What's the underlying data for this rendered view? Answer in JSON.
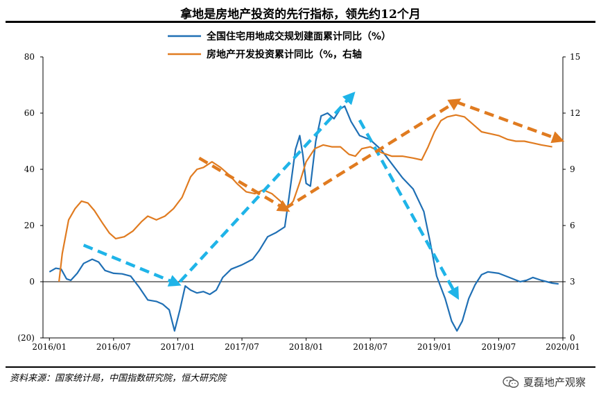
{
  "chart_data": {
    "type": "line",
    "title": "拿地是房地产投资的先行指标，领先约12个月",
    "series": [
      {
        "name": "全国住宅用地成交规划建面累计同比（%）",
        "axis": "left",
        "color": "#1f6fb4",
        "points": [
          [
            0.0,
            3.5
          ],
          [
            0.3,
            4.8
          ],
          [
            0.55,
            4.5
          ],
          [
            0.8,
            1.0
          ],
          [
            1.0,
            0.5
          ],
          [
            1.3,
            3.0
          ],
          [
            1.6,
            6.5
          ],
          [
            2.0,
            8.0
          ],
          [
            2.3,
            7.0
          ],
          [
            2.6,
            4.0
          ],
          [
            3.0,
            3.0
          ],
          [
            3.4,
            2.8
          ],
          [
            3.8,
            2.0
          ],
          [
            4.2,
            -2.0
          ],
          [
            4.6,
            -6.5
          ],
          [
            5.0,
            -7.0
          ],
          [
            5.3,
            -8.0
          ],
          [
            5.6,
            -10.0
          ],
          [
            5.85,
            -17.5
          ],
          [
            6.1,
            -10.0
          ],
          [
            6.35,
            -1.5
          ],
          [
            6.6,
            -3.0
          ],
          [
            6.9,
            -4.0
          ],
          [
            7.2,
            -3.5
          ],
          [
            7.5,
            -4.5
          ],
          [
            7.8,
            -3.0
          ],
          [
            8.1,
            1.5
          ],
          [
            8.5,
            4.5
          ],
          [
            9.0,
            6.0
          ],
          [
            9.5,
            8.0
          ],
          [
            9.8,
            11.0
          ],
          [
            10.2,
            16.0
          ],
          [
            10.6,
            17.5
          ],
          [
            11.0,
            19.5
          ],
          [
            11.2,
            30.0
          ],
          [
            11.5,
            47.0
          ],
          [
            11.7,
            52.0
          ],
          [
            11.85,
            45.0
          ],
          [
            12.0,
            35.0
          ],
          [
            12.2,
            34.0
          ],
          [
            12.45,
            50.0
          ],
          [
            12.7,
            59.0
          ],
          [
            13.0,
            60.0
          ],
          [
            13.3,
            58.0
          ],
          [
            13.6,
            61.5
          ],
          [
            13.8,
            62.5
          ],
          [
            14.1,
            57.0
          ],
          [
            14.5,
            52.0
          ],
          [
            15.0,
            50.5
          ],
          [
            15.5,
            47.0
          ],
          [
            16.0,
            42.0
          ],
          [
            16.5,
            37.0
          ],
          [
            17.0,
            33.0
          ],
          [
            17.5,
            25.0
          ],
          [
            17.8,
            14.0
          ],
          [
            18.1,
            2.0
          ],
          [
            18.5,
            -6.0
          ],
          [
            18.8,
            -14.0
          ],
          [
            19.05,
            -17.5
          ],
          [
            19.3,
            -14.0
          ],
          [
            19.6,
            -6.0
          ],
          [
            19.9,
            -1.0
          ],
          [
            20.2,
            2.5
          ],
          [
            20.5,
            3.5
          ],
          [
            21.0,
            3.0
          ],
          [
            21.5,
            1.5
          ],
          [
            22.0,
            0.0
          ],
          [
            22.3,
            0.5
          ],
          [
            22.6,
            1.5
          ],
          [
            23.0,
            0.5
          ],
          [
            23.5,
            -0.5
          ],
          [
            23.8,
            -0.8
          ]
        ]
      },
      {
        "name": "房地产开发投资累计同比（%，右轴",
        "axis": "right",
        "color": "#e07b20",
        "points": [
          [
            0.45,
            3.0
          ],
          [
            0.6,
            4.5
          ],
          [
            0.9,
            6.3
          ],
          [
            1.2,
            6.9
          ],
          [
            1.5,
            7.3
          ],
          [
            1.8,
            7.2
          ],
          [
            2.1,
            6.8
          ],
          [
            2.5,
            6.1
          ],
          [
            2.8,
            5.6
          ],
          [
            3.1,
            5.3
          ],
          [
            3.5,
            5.4
          ],
          [
            3.9,
            5.7
          ],
          [
            4.3,
            6.2
          ],
          [
            4.6,
            6.5
          ],
          [
            5.0,
            6.3
          ],
          [
            5.4,
            6.5
          ],
          [
            5.8,
            6.9
          ],
          [
            6.2,
            7.5
          ],
          [
            6.6,
            8.6
          ],
          [
            6.9,
            9.0
          ],
          [
            7.2,
            9.1
          ],
          [
            7.6,
            9.4
          ],
          [
            8.0,
            9.1
          ],
          [
            8.4,
            8.7
          ],
          [
            8.8,
            8.2
          ],
          [
            9.2,
            7.8
          ],
          [
            9.6,
            7.7
          ],
          [
            10.0,
            7.9
          ],
          [
            10.4,
            7.7
          ],
          [
            10.8,
            7.3
          ],
          [
            11.1,
            6.9
          ],
          [
            11.4,
            7.3
          ],
          [
            11.7,
            8.3
          ],
          [
            12.0,
            9.4
          ],
          [
            12.4,
            10.1
          ],
          [
            12.8,
            10.3
          ],
          [
            13.2,
            10.2
          ],
          [
            13.6,
            10.2
          ],
          [
            14.0,
            9.8
          ],
          [
            14.3,
            9.7
          ],
          [
            14.6,
            10.1
          ],
          [
            15.0,
            10.2
          ],
          [
            15.5,
            9.9
          ],
          [
            16.0,
            9.7
          ],
          [
            16.5,
            9.7
          ],
          [
            17.0,
            9.6
          ],
          [
            17.4,
            9.5
          ],
          [
            17.7,
            10.2
          ],
          [
            18.0,
            11.0
          ],
          [
            18.3,
            11.6
          ],
          [
            18.6,
            11.8
          ],
          [
            19.0,
            11.9
          ],
          [
            19.4,
            11.8
          ],
          [
            19.8,
            11.4
          ],
          [
            20.2,
            11.0
          ],
          [
            20.6,
            10.9
          ],
          [
            21.0,
            10.8
          ],
          [
            21.4,
            10.6
          ],
          [
            21.8,
            10.5
          ],
          [
            22.2,
            10.5
          ],
          [
            22.6,
            10.4
          ],
          [
            23.0,
            10.3
          ],
          [
            23.5,
            10.2
          ]
        ]
      }
    ],
    "x_tick_labels": [
      "2016/01",
      "2016/07",
      "2017/01",
      "2017/07",
      "2018/01",
      "2018/07",
      "2019/01",
      "2019/07",
      "2020/01"
    ],
    "xlim": [
      -0.3,
      24.0
    ],
    "left_axis": {
      "ylim": [
        -20,
        80
      ],
      "ticks": [
        -20,
        0,
        20,
        40,
        60,
        80
      ],
      "tick_labels": [
        "(20)",
        "0",
        "20",
        "40",
        "60",
        "80"
      ],
      "negative_label_color": "#cc0000"
    },
    "right_axis": {
      "ylim": [
        0,
        15
      ],
      "ticks": [
        0,
        3,
        6,
        9,
        12,
        15
      ],
      "tick_labels": [
        "0",
        "3",
        "6",
        "9",
        "12",
        "15"
      ]
    },
    "trend_arrows": [
      {
        "color": "#1fb4e8",
        "axis": "left",
        "from": [
          1.6,
          13.0
        ],
        "to": [
          5.9,
          -0.5
        ]
      },
      {
        "color": "#1fb4e8",
        "axis": "left",
        "from": [
          6.1,
          0.0
        ],
        "to": [
          14.1,
          66.0
        ]
      },
      {
        "color": "#1fb4e8",
        "axis": "left",
        "from": [
          14.5,
          57.5
        ],
        "to": [
          19.0,
          -4.5
        ]
      },
      {
        "color": "#e07b20",
        "axis": "right",
        "from": [
          7.0,
          9.6
        ],
        "to": [
          11.0,
          6.9
        ]
      },
      {
        "color": "#e07b20",
        "axis": "right",
        "from": [
          11.0,
          6.9
        ],
        "to": [
          19.0,
          12.6
        ]
      },
      {
        "color": "#e07b20",
        "axis": "right",
        "from": [
          19.0,
          12.6
        ],
        "to": [
          23.8,
          10.6
        ]
      }
    ],
    "grid": false,
    "legend_position": "top-center"
  },
  "source": "资料来源：国家统计局，中国指数研究院，恒大研究院",
  "watermark": "夏磊地产观察"
}
